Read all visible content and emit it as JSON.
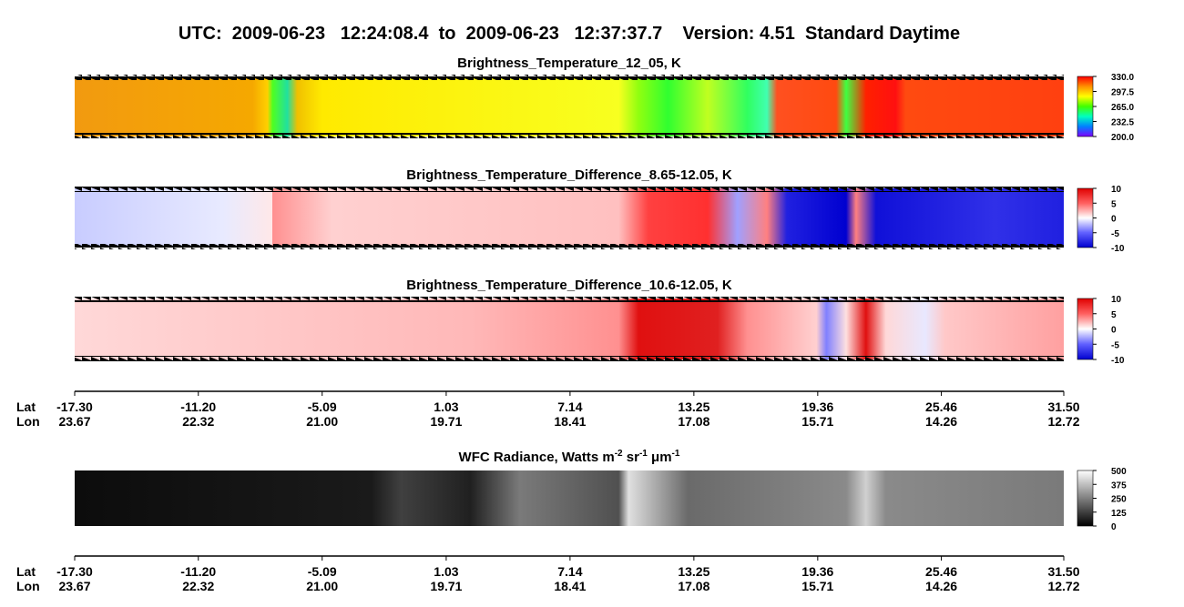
{
  "header": {
    "title": "UTC:  2009-06-23   12:24:08.4  to  2009-06-23   12:37:37.7    Version: 4.51  Standard Daytime"
  },
  "chart_data": [
    {
      "type": "heatmap",
      "title": "Brightness_Temperature_12_05, K",
      "clim": [
        200,
        330
      ],
      "colormap": [
        "#8000ff",
        "#0080ff",
        "#00ffc0",
        "#40ff00",
        "#ffff00",
        "#ff9000",
        "#ff0000"
      ],
      "cticks": [
        {
          "value": 330,
          "label": "330.0"
        },
        {
          "value": 297.5,
          "label": "297.5"
        },
        {
          "value": 265,
          "label": "265.0"
        },
        {
          "value": 232.5,
          "label": "232.5"
        },
        {
          "value": 200,
          "label": "200.0"
        }
      ]
    },
    {
      "type": "heatmap",
      "title": "Brightness_Temperature_Difference_8.65-12.05, K",
      "clim": [
        -10,
        10
      ],
      "colormap": [
        "#0000d0",
        "#6060ff",
        "#ffffff",
        "#ff6060",
        "#e00000"
      ],
      "cticks": [
        10,
        5,
        0,
        -5,
        -10
      ]
    },
    {
      "type": "heatmap",
      "title": "Brightness_Temperature_Difference_10.6-12.05, K",
      "clim": [
        -10,
        10
      ],
      "colormap": [
        "#0000d0",
        "#6060ff",
        "#ffffff",
        "#ff6060",
        "#e00000"
      ],
      "cticks": [
        10,
        5,
        0,
        -5,
        -10
      ]
    },
    {
      "type": "heatmap",
      "title": [
        "WFC Radiance, Watts m",
        "-2",
        " sr",
        "-1",
        " μm",
        "-1"
      ],
      "clim": [
        0,
        500
      ],
      "colormap": [
        "#000000",
        "#ffffff"
      ],
      "cticks": [
        500,
        375,
        250,
        125,
        0
      ]
    }
  ],
  "axes": [
    {
      "lat_label": "Lat",
      "lon_label": "Lon",
      "xlim": [
        -17.3,
        31.5
      ],
      "lat_ticks": [
        {
          "value": -17.3,
          "label": "-17.30"
        },
        {
          "value": -11.2,
          "label": "-11.20"
        },
        {
          "value": -5.09,
          "label": "-5.09"
        },
        {
          "value": 1.03,
          "label": "1.03"
        },
        {
          "value": 7.14,
          "label": "7.14"
        },
        {
          "value": 13.25,
          "label": "13.25"
        },
        {
          "value": 19.36,
          "label": "19.36"
        },
        {
          "value": 25.46,
          "label": "25.46"
        },
        {
          "value": 31.5,
          "label": "31.50"
        }
      ],
      "lon_ticks": [
        "23.67",
        "22.32",
        "21.00",
        "19.71",
        "18.41",
        "17.08",
        "15.71",
        "14.26",
        "12.72"
      ]
    },
    {
      "lat_label": "Lat",
      "lon_label": "Lon",
      "xlim": [
        -17.3,
        31.5
      ],
      "lat_ticks": [
        {
          "value": -17.3,
          "label": "-17.30"
        },
        {
          "value": -11.2,
          "label": "-11.20"
        },
        {
          "value": -5.09,
          "label": "-5.09"
        },
        {
          "value": 1.03,
          "label": "1.03"
        },
        {
          "value": 7.14,
          "label": "7.14"
        },
        {
          "value": 13.25,
          "label": "13.25"
        },
        {
          "value": 19.36,
          "label": "19.36"
        },
        {
          "value": 25.46,
          "label": "25.46"
        },
        {
          "value": 31.5,
          "label": "31.50"
        }
      ],
      "lon_ticks": [
        "23.67",
        "22.32",
        "21.00",
        "19.71",
        "18.41",
        "17.08",
        "15.71",
        "14.26",
        "12.72"
      ]
    }
  ]
}
